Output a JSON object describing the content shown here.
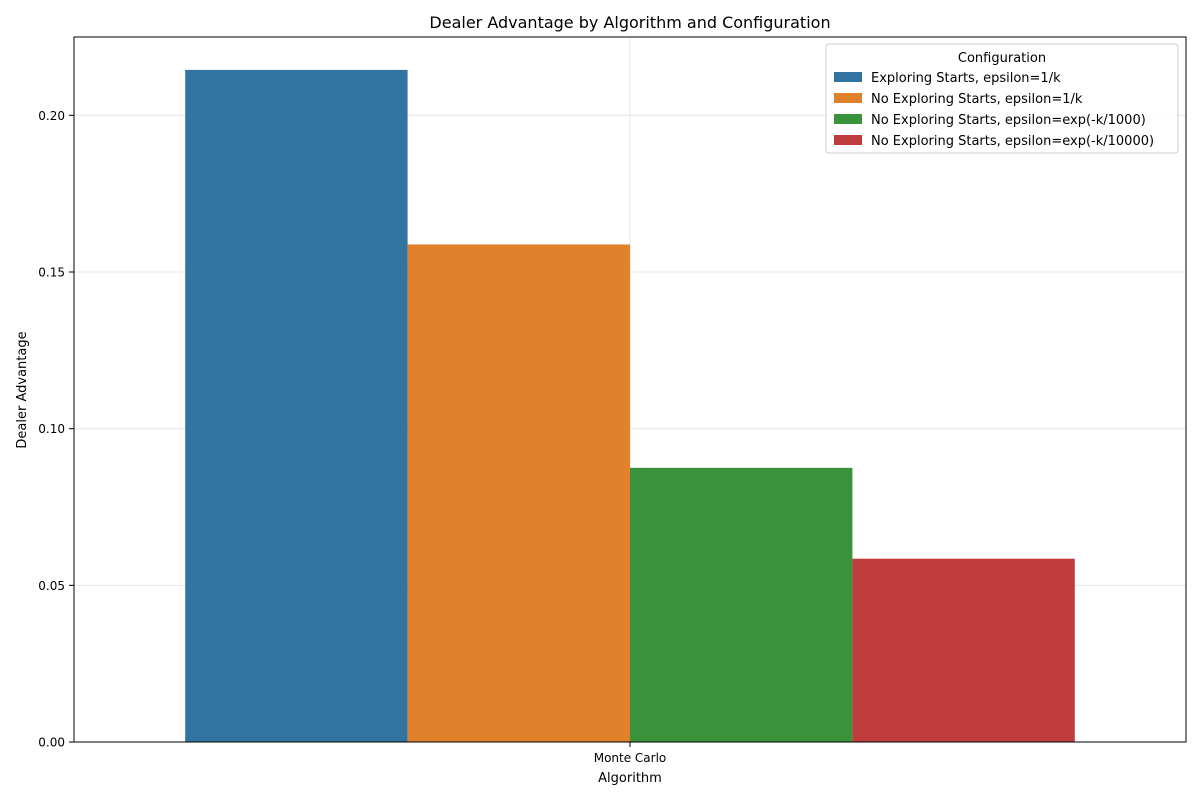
{
  "chart_data": {
    "type": "bar",
    "title": "Dealer Advantage by Algorithm and Configuration",
    "xlabel": "Algorithm",
    "ylabel": "Dealer Advantage",
    "categories": [
      "Monte Carlo"
    ],
    "ylim": [
      0,
      0.225
    ],
    "yticks": [
      0.0,
      0.05,
      0.1,
      0.15,
      0.2
    ],
    "ytick_labels": [
      "0.00",
      "0.05",
      "0.10",
      "0.15",
      "0.20"
    ],
    "grid": true,
    "legend": {
      "title": "Configuration",
      "placement": "top-right"
    },
    "series": [
      {
        "name": "Exploring Starts, epsilon=1/k",
        "values": [
          0.2145
        ],
        "color": "#3274a1"
      },
      {
        "name": "No Exploring Starts, epsilon=1/k",
        "values": [
          0.1588
        ],
        "color": "#e1812c"
      },
      {
        "name": "No Exploring Starts, epsilon=exp(-k/1000)",
        "values": [
          0.0875
        ],
        "color": "#3a923a"
      },
      {
        "name": "No Exploring Starts, epsilon=exp(-k/10000)",
        "values": [
          0.0585
        ],
        "color": "#c03d3e"
      }
    ]
  }
}
